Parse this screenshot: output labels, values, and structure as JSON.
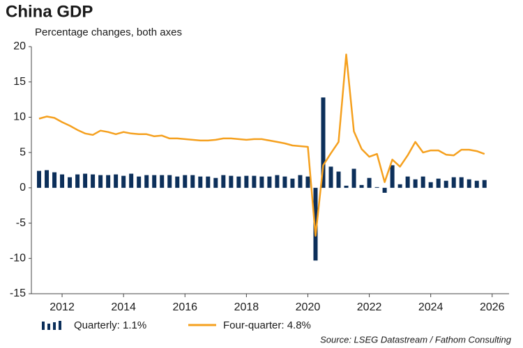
{
  "chart_data": {
    "type": "bar_line",
    "title": "China GDP",
    "subtitle": "Percentage changes, both axes",
    "source": "Source: LSEG Datastream / Fathom Consulting",
    "x": [
      2011.25,
      2011.5,
      2011.75,
      2012,
      2012.25,
      2012.5,
      2012.75,
      2013,
      2013.25,
      2013.5,
      2013.75,
      2014,
      2014.25,
      2014.5,
      2014.75,
      2015,
      2015.25,
      2015.5,
      2015.75,
      2016,
      2016.25,
      2016.5,
      2016.75,
      2017,
      2017.25,
      2017.5,
      2017.75,
      2018,
      2018.25,
      2018.5,
      2018.75,
      2019,
      2019.25,
      2019.5,
      2019.75,
      2020,
      2020.25,
      2020.5,
      2020.75,
      2021,
      2021.25,
      2021.5,
      2021.75,
      2022,
      2022.25,
      2022.5,
      2022.75,
      2023,
      2023.25,
      2023.5,
      2023.75,
      2024,
      2024.25,
      2024.5,
      2024.75,
      2025,
      2025.25,
      2025.5,
      2025.75
    ],
    "series": [
      {
        "name": "Quarterly: 1.1%",
        "color": "#0c2f5a",
        "kind": "bar",
        "values": [
          2.4,
          2.5,
          2.2,
          1.9,
          1.5,
          1.9,
          2.0,
          1.9,
          1.8,
          1.8,
          1.9,
          1.7,
          2.0,
          1.6,
          1.8,
          1.8,
          1.8,
          1.8,
          1.6,
          1.8,
          1.8,
          1.6,
          1.6,
          1.4,
          1.8,
          1.7,
          1.6,
          1.7,
          1.7,
          1.6,
          1.6,
          1.8,
          1.6,
          1.3,
          1.8,
          1.6,
          -10.3,
          12.8,
          3.0,
          2.3,
          0.3,
          2.7,
          0.4,
          1.4,
          0.1,
          -0.7,
          3.2,
          0.5,
          1.6,
          1.2,
          1.6,
          0.8,
          1.3,
          1.0,
          1.5,
          1.5,
          1.2,
          1.0,
          1.1
        ]
      },
      {
        "name": "Four-quarter: 4.8%",
        "color": "#f5a01e",
        "kind": "line",
        "values": [
          9.8,
          10.1,
          9.9,
          9.3,
          8.8,
          8.2,
          7.7,
          7.5,
          8.1,
          7.9,
          7.6,
          7.9,
          7.7,
          7.6,
          7.6,
          7.3,
          7.4,
          7.0,
          7.0,
          6.9,
          6.8,
          6.7,
          6.7,
          6.8,
          7.0,
          7.0,
          6.9,
          6.8,
          6.9,
          6.9,
          6.7,
          6.5,
          6.3,
          6.0,
          5.9,
          5.8,
          -6.8,
          3.2,
          4.9,
          6.5,
          18.9,
          8.0,
          5.5,
          4.4,
          4.8,
          0.8,
          4.0,
          3.0,
          4.6,
          6.5,
          5.0,
          5.3,
          5.3,
          4.7,
          4.6,
          5.4,
          5.4,
          5.2,
          4.8
        ]
      }
    ],
    "xlim": [
      2011,
      2026.55
    ],
    "xticks": [
      2012,
      2014,
      2016,
      2018,
      2020,
      2022,
      2024,
      2026
    ],
    "ylim": [
      -15,
      20
    ],
    "yticks": [
      -15,
      -10,
      -5,
      0,
      5,
      10,
      15,
      20
    ]
  }
}
